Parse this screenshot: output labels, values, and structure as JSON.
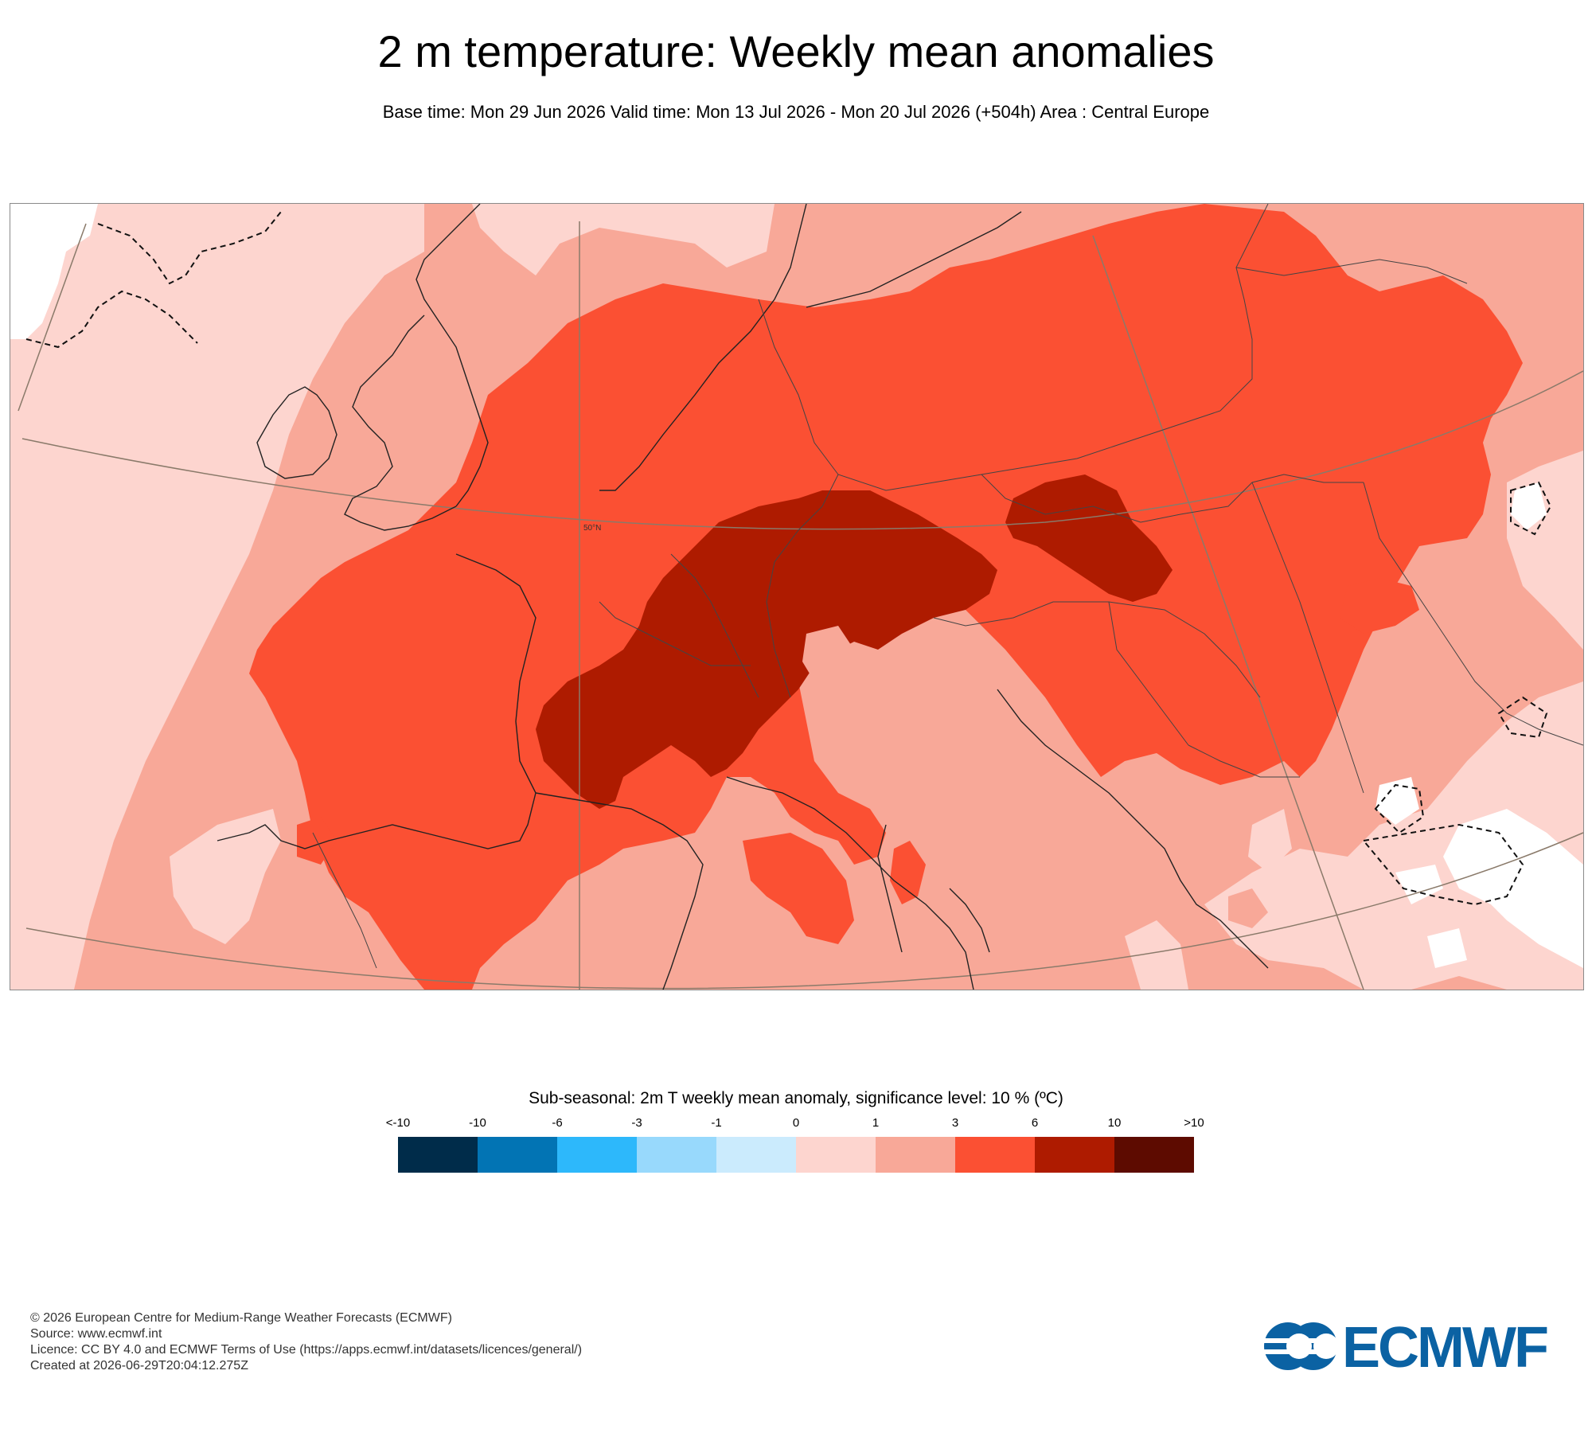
{
  "header": {
    "title": "2 m temperature: Weekly mean anomalies",
    "subtitle": "Base time: Mon 29 Jun 2026 Valid time: Mon 13 Jul 2026 - Mon 20 Jul 2026 (+504h) Area : Central Europe"
  },
  "map": {
    "graticule_label": "50°N",
    "shading_colors": {
      "light_pink": "#fdd5cf",
      "salmon": "#f8a898",
      "orange_red": "#fb5033",
      "dark_red": "#ae1b00"
    }
  },
  "legend": {
    "title": "Sub-seasonal: 2m T weekly mean anomaly, significance level: 10 % (ºC)",
    "ticks": [
      "<-10",
      "-10",
      "-6",
      "-3",
      "-1",
      "0",
      "1",
      "3",
      "6",
      "10",
      ">10"
    ],
    "colors": [
      "#002c4a",
      "#0274b4",
      "#2db8fb",
      "#98d9fc",
      "#cbebfd",
      "#fdd5cf",
      "#f8a898",
      "#fb5033",
      "#ae1b00",
      "#5d0b00"
    ]
  },
  "footer": {
    "copyright": "© 2026 European Centre for Medium-Range Weather Forecasts (ECMWF)",
    "source": "Source: www.ecmwf.int",
    "licence": "Licence: CC BY 4.0 and ECMWF Terms of Use (https://apps.ecmwf.int/datasets/licences/general/)",
    "created": "Created at 2026-06-29T20:04:12.275Z"
  },
  "logo": {
    "text": "ECMWF",
    "color": "#0b62a3"
  }
}
